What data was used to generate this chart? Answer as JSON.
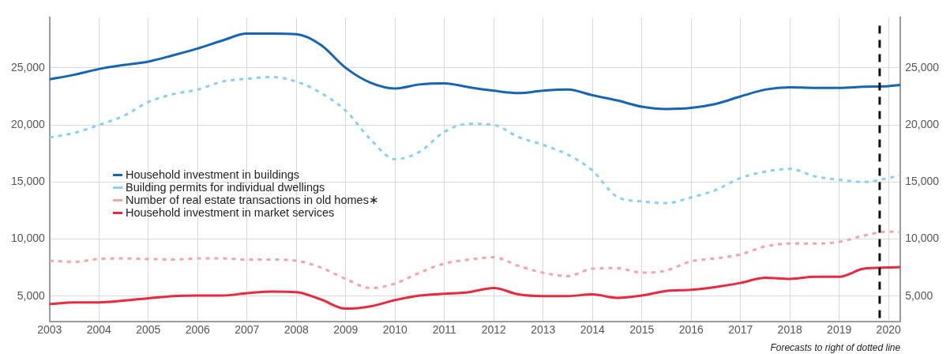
{
  "chart_data": {
    "type": "line",
    "annotations": [
      "Forecasts to right of dotted line"
    ],
    "x": [
      2003,
      2003.5,
      2004,
      2004.5,
      2005,
      2005.5,
      2006,
      2006.5,
      2007,
      2007.5,
      2008,
      2008.5,
      2009,
      2009.5,
      2010,
      2010.5,
      2011,
      2011.5,
      2012,
      2012.5,
      2013,
      2013.5,
      2014,
      2014.5,
      2015,
      2015.5,
      2016,
      2016.5,
      2017,
      2017.5,
      2018,
      2018.5,
      2019,
      2019.5,
      2020,
      2020.24
    ],
    "series": [
      {
        "name": "Household investment in buildings",
        "color": "#1565b4",
        "line_style": "solid",
        "values": [
          24000,
          24400,
          24900,
          25250,
          25550,
          26100,
          26700,
          27400,
          28000,
          28000,
          27950,
          27000,
          25000,
          23700,
          23200,
          23550,
          23650,
          23300,
          23000,
          22800,
          23000,
          23100,
          22600,
          22150,
          21600,
          21400,
          21500,
          21850,
          22500,
          23100,
          23300,
          23250,
          23250,
          23350,
          23400,
          23500
        ]
      },
      {
        "name": "Building permits for individual dwellings",
        "color": "#87d0f0",
        "line_style": "dotted",
        "values": [
          18900,
          19300,
          20000,
          20800,
          22000,
          22700,
          23100,
          23800,
          24050,
          24200,
          23800,
          22800,
          21250,
          18750,
          17000,
          17650,
          19400,
          20100,
          20000,
          18950,
          18250,
          17400,
          16000,
          13700,
          13300,
          13150,
          13650,
          14300,
          15350,
          15900,
          16150,
          15500,
          15200,
          15000,
          15350,
          15600
        ]
      },
      {
        "name": "Number of real estate transactions in old homes∗",
        "color": "#f4a3a8",
        "line_style": "dotted",
        "values": [
          8100,
          8000,
          8250,
          8300,
          8250,
          8200,
          8300,
          8300,
          8200,
          8200,
          8100,
          7500,
          6500,
          5700,
          6100,
          7050,
          7850,
          8200,
          8400,
          7650,
          7050,
          6750,
          7400,
          7450,
          7050,
          7250,
          8050,
          8300,
          8650,
          9350,
          9600,
          9600,
          9750,
          10300,
          10650,
          10600
        ]
      },
      {
        "name": "Household investment in market services",
        "color": "#e8293f",
        "line_style": "solid",
        "values": [
          4300,
          4450,
          4450,
          4600,
          4800,
          5000,
          5050,
          5050,
          5250,
          5400,
          5350,
          4700,
          3900,
          4100,
          4650,
          5050,
          5200,
          5350,
          5700,
          5150,
          5000,
          5000,
          5150,
          4850,
          5050,
          5450,
          5550,
          5800,
          6150,
          6600,
          6500,
          6700,
          6700,
          7400,
          7500,
          7550
        ]
      }
    ],
    "xlim": [
      2003,
      2020.24
    ],
    "xticks": [
      2003,
      2004,
      2005,
      2006,
      2007,
      2008,
      2009,
      2010,
      2011,
      2012,
      2013,
      2014,
      2015,
      2016,
      2017,
      2018,
      2019,
      2020
    ],
    "ylim": [
      2750,
      29400
    ],
    "yticks": [
      {
        "value": 5000,
        "label": "5,000"
      },
      {
        "value": 10000,
        "label": "10,000"
      },
      {
        "value": 15000,
        "label": "15,000"
      },
      {
        "value": 20000,
        "label": "20,000"
      },
      {
        "value": 25000,
        "label": "25,000"
      }
    ],
    "y2lim": [
      2750,
      29400
    ],
    "y2ticks": [
      {
        "value": 5000,
        "label": "5,000"
      },
      {
        "value": 10000,
        "label": "10,000"
      },
      {
        "value": 15000,
        "label": "15,000"
      },
      {
        "value": 20000,
        "label": "20,000"
      },
      {
        "value": 25000,
        "label": "25,000"
      }
    ],
    "ref_lines": [
      {
        "axis": "x",
        "value": 2019.82,
        "color": "#111111",
        "line_style": "dashed"
      }
    ],
    "grid": true,
    "legend": "left",
    "marker": "none"
  }
}
